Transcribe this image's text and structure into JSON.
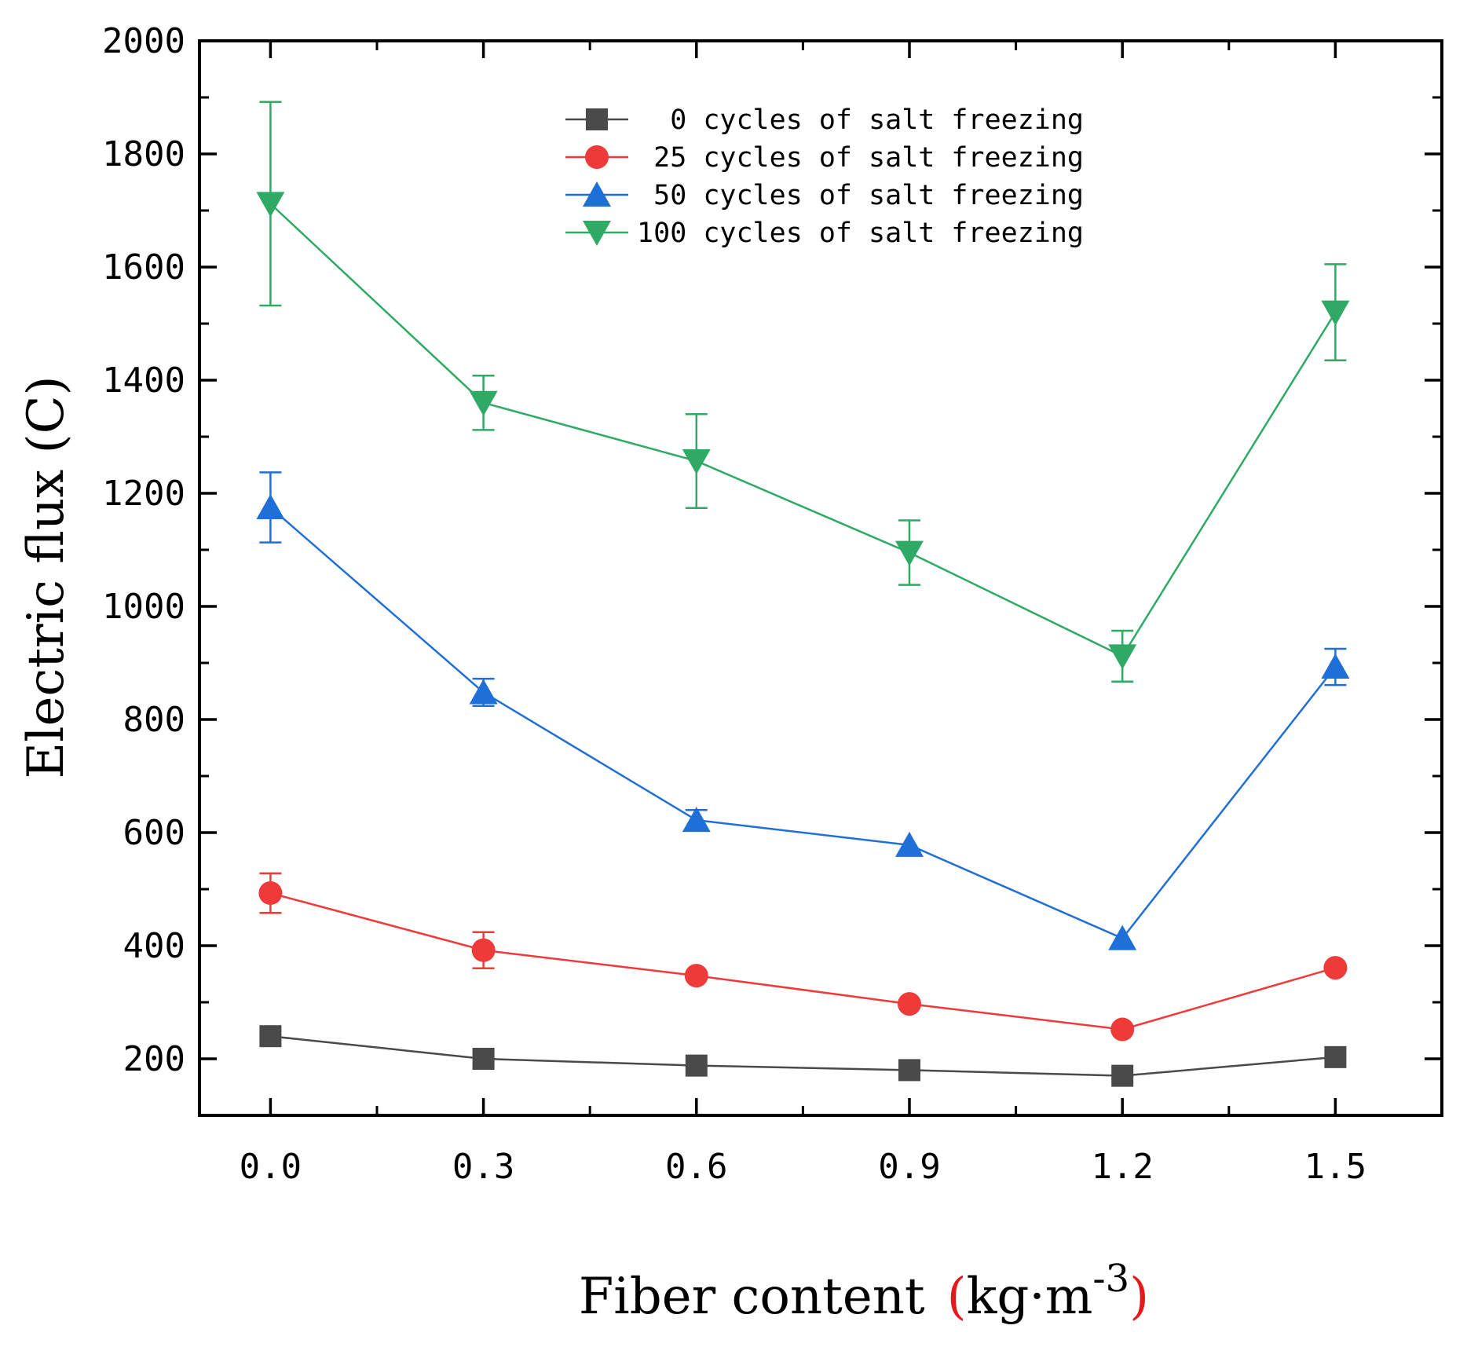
{
  "chart_data": {
    "type": "line",
    "title": "",
    "xlabel": "Fiber content",
    "xlabel_unit": {
      "open": "(",
      "base": "kg·m",
      "exponent": "-3",
      "close": ")"
    },
    "ylabel": "Electric flux (C)",
    "x": [
      0.0,
      0.3,
      0.6,
      0.9,
      1.2,
      1.5
    ],
    "x_tick_labels": [
      "0.0",
      "0.3",
      "0.6",
      "0.9",
      "1.2",
      "1.5"
    ],
    "xlim": [
      -0.1,
      1.65
    ],
    "ylim": [
      100,
      2000
    ],
    "y_ticks": [
      200,
      400,
      600,
      800,
      1000,
      1200,
      1400,
      1600,
      1800,
      2000
    ],
    "y_tick_labels": [
      "200",
      "400",
      "600",
      "800",
      "1000",
      "1200",
      "1400",
      "1600",
      "1800",
      "2000"
    ],
    "grid": false,
    "legend_position": "top-center",
    "series": [
      {
        "name": "0 cycles of salt freezing",
        "color": "#4a4a4a",
        "marker": "square",
        "values": [
          240,
          200,
          188,
          180,
          170,
          203
        ],
        "errors": [
          0,
          0,
          0,
          0,
          0,
          0
        ]
      },
      {
        "name": "25 cycles of salt freezing",
        "color": "#ef3a3a",
        "marker": "circle",
        "values": [
          493,
          392,
          347,
          297,
          252,
          361
        ],
        "errors": [
          35,
          32,
          0,
          0,
          0,
          0
        ]
      },
      {
        "name": "50 cycles of salt freezing",
        "color": "#1f6fd8",
        "marker": "triangle-up",
        "values": [
          1175,
          848,
          622,
          578,
          413,
          893
        ],
        "errors": [
          62,
          24,
          18,
          0,
          0,
          32
        ]
      },
      {
        "name": "100 cycles of salt freezing",
        "color": "#2eaa64",
        "marker": "triangle-down",
        "values": [
          1712,
          1360,
          1257,
          1095,
          912,
          1520
        ],
        "errors": [
          180,
          48,
          83,
          57,
          45,
          85
        ]
      }
    ]
  }
}
